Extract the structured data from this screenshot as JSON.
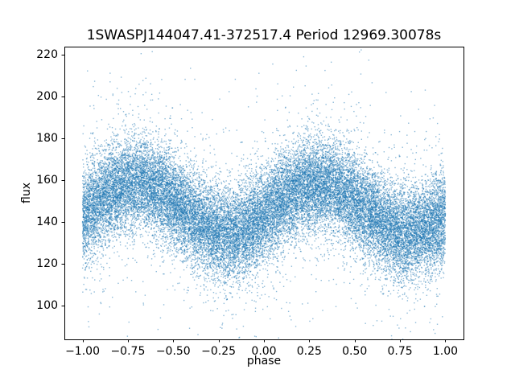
{
  "chart_data": {
    "type": "scatter",
    "title": "1SWASPJ144047.41-372517.4 Period 12969.30078s",
    "xlabel": "phase",
    "ylabel": "flux",
    "xlim": [
      -1.1,
      1.1
    ],
    "ylim": [
      84,
      224
    ],
    "x_ticks": [
      -1.0,
      -0.75,
      -0.5,
      -0.25,
      0.0,
      0.25,
      0.5,
      0.75,
      1.0
    ],
    "x_tick_labels": [
      "−1.00",
      "−0.75",
      "−0.50",
      "−0.25",
      "0.00",
      "0.25",
      "0.50",
      "0.75",
      "1.00"
    ],
    "y_ticks": [
      100,
      120,
      140,
      160,
      180,
      200,
      220
    ],
    "y_tick_labels": [
      "100",
      "120",
      "140",
      "160",
      "180",
      "200",
      "220"
    ],
    "grid": false,
    "legend": null,
    "marker_color": "#1f77b4",
    "marker_alpha": 0.5,
    "marker_size": 1.4,
    "frame_color": "#000000",
    "description": "Phase-folded light curve scatter: dense sinusoidal band of flux ~125-170 with maxima near phase -0.70 and 0.30 (flux ~158) and minima near phase -0.20 and 0.80 (flux ~135), surrounded by a sparse halo of outliers spanning flux ~90-218 across phase -1.0 to 1.0.",
    "generator": {
      "n_points": 30000,
      "phase_range": [
        -1,
        1
      ],
      "center_base": 146.5,
      "amplitude": 12,
      "phase_offset": 0.05,
      "sigma_dense": 11,
      "outlier_fraction": 0.07,
      "sigma_outlier": 27,
      "seed": 7
    }
  }
}
